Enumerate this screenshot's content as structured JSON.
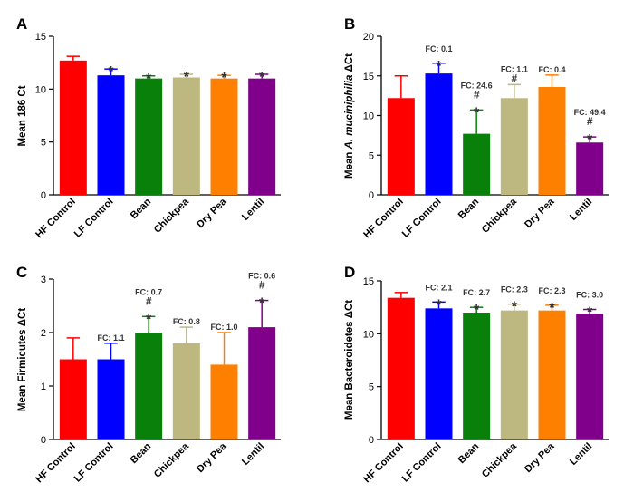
{
  "chart_data": [
    {
      "type": "bar",
      "panel": "A",
      "title": "",
      "ylabel": "Mean 186 Ct",
      "ylim": [
        0,
        15
      ],
      "yticks": [
        0,
        5,
        10,
        15
      ],
      "categories": [
        "HF Control",
        "LF Control",
        "Bean",
        "Chickpea",
        "Dry Pea",
        "Lentil"
      ],
      "values": [
        12.7,
        11.3,
        11.0,
        11.1,
        11.0,
        11.0
      ],
      "errors": [
        0.4,
        0.6,
        0.25,
        0.3,
        0.3,
        0.4
      ],
      "colors": [
        "#fe0000",
        "#0000fe",
        "#098009",
        "#bdb780",
        "#fe8000",
        "#80008b"
      ],
      "annotations": [
        [],
        [
          "*"
        ],
        [
          "*"
        ],
        [
          "*"
        ],
        [
          "*"
        ],
        [
          "*"
        ]
      ]
    },
    {
      "type": "bar",
      "panel": "B",
      "title": "",
      "ylabel_prefix": "Mean ",
      "ylabel_italic": "A. muciniphilia",
      "ylabel_suffix": " ΔCt",
      "ylim": [
        0,
        20
      ],
      "yticks": [
        0,
        5,
        10,
        15,
        20
      ],
      "categories": [
        "HF Control",
        "LF Control",
        "Bean",
        "Chickpea",
        "Dry Pea",
        "Lentil"
      ],
      "values": [
        12.2,
        15.3,
        7.7,
        12.2,
        13.6,
        6.6
      ],
      "errors": [
        2.8,
        1.3,
        3.0,
        1.7,
        1.5,
        0.7
      ],
      "colors": [
        "#fe0000",
        "#0000fe",
        "#098009",
        "#bdb780",
        "#fe8000",
        "#80008b"
      ],
      "annotations": [
        [],
        [
          "FC: 0.1",
          "*"
        ],
        [
          "FC: 24.6",
          "#",
          "*"
        ],
        [
          "FC: 1.1",
          "#"
        ],
        [
          "FC: 0.4"
        ],
        [
          "FC: 49.4",
          "#",
          "*"
        ]
      ]
    },
    {
      "type": "bar",
      "panel": "C",
      "title": "",
      "ylabel": "Mean Firmicutes ΔCt",
      "ylim": [
        0,
        3
      ],
      "yticks": [
        0,
        1,
        2,
        3
      ],
      "categories": [
        "HF Control",
        "LF Control",
        "Bean",
        "Chickpea",
        "Dry Pea",
        "Lentil"
      ],
      "values": [
        1.5,
        1.5,
        2.0,
        1.8,
        1.4,
        2.1
      ],
      "errors": [
        0.4,
        0.3,
        0.3,
        0.3,
        0.6,
        0.5
      ],
      "colors": [
        "#fe0000",
        "#0000fe",
        "#098009",
        "#bdb780",
        "#fe8000",
        "#80008b"
      ],
      "annotations": [
        [],
        [
          "FC: 1.1"
        ],
        [
          "FC: 0.7",
          "#",
          "*"
        ],
        [
          "FC: 0.8"
        ],
        [
          "FC: 1.0"
        ],
        [
          "FC: 0.6",
          "#",
          "*"
        ]
      ]
    },
    {
      "type": "bar",
      "panel": "D",
      "title": "",
      "ylabel": "Mean Bacteroidetes ΔCt",
      "ylim": [
        0,
        15
      ],
      "yticks": [
        0,
        5,
        10,
        15
      ],
      "categories": [
        "HF Control",
        "LF Control",
        "Bean",
        "Chickpea",
        "Dry Pea",
        "Lentil"
      ],
      "values": [
        13.4,
        12.4,
        12.0,
        12.2,
        12.2,
        11.9
      ],
      "errors": [
        0.5,
        0.6,
        0.5,
        0.6,
        0.5,
        0.4
      ],
      "colors": [
        "#fe0000",
        "#0000fe",
        "#098009",
        "#bdb780",
        "#fe8000",
        "#80008b"
      ],
      "annotations": [
        [],
        [
          "FC: 2.1",
          "*"
        ],
        [
          "FC: 2.7",
          "*"
        ],
        [
          "FC: 2.3",
          "*"
        ],
        [
          "FC: 2.3",
          "*"
        ],
        [
          "FC: 3.0",
          "*"
        ]
      ]
    }
  ]
}
